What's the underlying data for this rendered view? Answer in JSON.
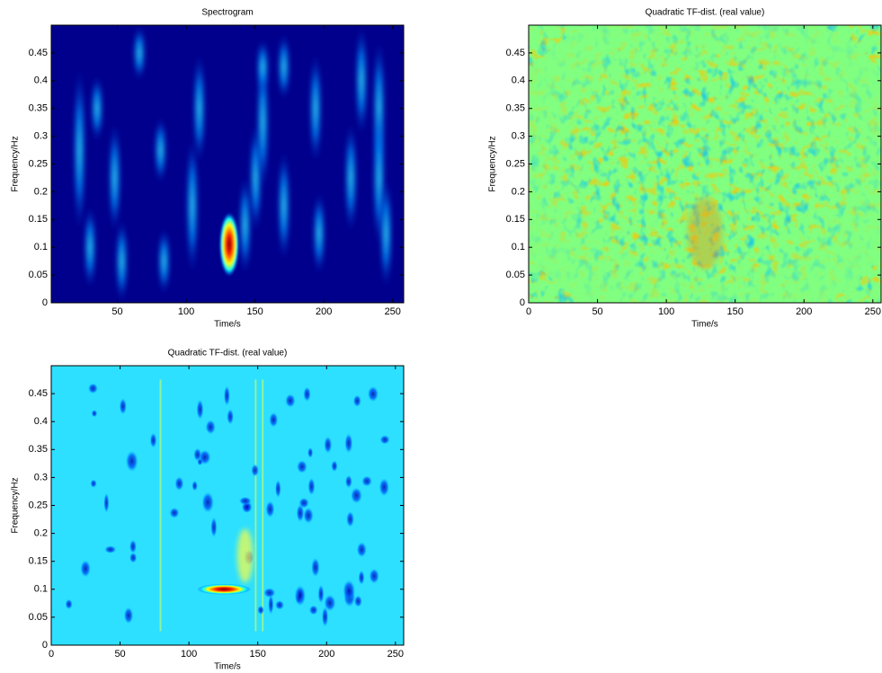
{
  "chart_data": [
    {
      "type": "heatmap",
      "title": "Spectrogram",
      "xlabel": "Time/s",
      "ylabel": "Frequency/Hz",
      "xlim": [
        2,
        258
      ],
      "ylim": [
        0,
        0.5
      ],
      "xticks": [
        50,
        100,
        150,
        200,
        250
      ],
      "yticks": [
        0,
        0.05,
        0.1,
        0.15,
        0.2,
        0.25,
        0.3,
        0.35,
        0.4,
        0.45
      ]
    },
    {
      "type": "heatmap",
      "title": "Quadratic TF-dist. (real value)",
      "xlabel": "Time/s",
      "ylabel": "Frequency/Hz",
      "xlim": [
        0,
        256
      ],
      "ylim": [
        0,
        0.5
      ],
      "xticks": [
        0,
        50,
        100,
        150,
        200,
        250
      ],
      "yticks": [
        0,
        0.05,
        0.1,
        0.15,
        0.2,
        0.25,
        0.3,
        0.35,
        0.4,
        0.45
      ]
    },
    {
      "type": "heatmap",
      "title": "Quadratic TF-dist. (real value)",
      "xlabel": "Time/s",
      "ylabel": "Frequency/Hz",
      "xlim": [
        0,
        256
      ],
      "ylim": [
        0,
        0.5
      ],
      "xticks": [
        0,
        50,
        100,
        150,
        200,
        250
      ],
      "yticks": [
        0,
        0.05,
        0.1,
        0.15,
        0.2,
        0.25,
        0.3,
        0.35,
        0.4,
        0.45
      ]
    }
  ]
}
